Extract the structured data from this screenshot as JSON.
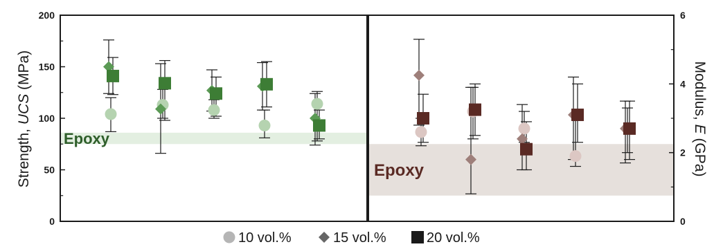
{
  "chart_data": [
    {
      "type": "scatter",
      "panel": "left",
      "ylabel_prefix": "Strength, ",
      "ylabel_italic": "UCS",
      "ylabel_suffix": " (MPa)",
      "ylim": [
        0,
        200
      ],
      "yticks": [
        "0",
        "50",
        "100",
        "150",
        "200"
      ],
      "ytick_values": [
        0,
        50,
        100,
        150,
        200
      ],
      "grid": false,
      "band": {
        "label": "Epoxy",
        "range": [
          75,
          86
        ],
        "color": "#e3efe1",
        "label_color": "#2e5e2a"
      },
      "series": [
        {
          "name": "10 vol.%",
          "marker": "circle",
          "color": "#b5d3b0",
          "values": [
            104,
            113,
            108,
            93,
            114
          ],
          "err_low": [
            87,
            100,
            100,
            81,
            78
          ],
          "err_high": [
            120,
            128,
            118,
            108,
            126
          ]
        },
        {
          "name": "15 vol.%",
          "marker": "diamond",
          "color": "#5b9a55",
          "values": [
            150,
            109,
            127,
            131,
            100
          ],
          "err_low": [
            124,
            66,
            107,
            108,
            74
          ],
          "err_high": [
            176,
            153,
            147,
            154,
            124
          ]
        },
        {
          "name": "20 vol.%",
          "marker": "square",
          "color": "#3d7d35",
          "values": [
            141,
            134,
            124,
            133,
            93
          ],
          "err_low": [
            123,
            98,
            102,
            111,
            80
          ],
          "err_high": [
            159,
            156,
            140,
            155,
            108
          ]
        }
      ]
    },
    {
      "type": "scatter",
      "panel": "right",
      "ylabel_prefix": "Modulus, ",
      "ylabel_italic": "E",
      "ylabel_suffix": " (GPa)",
      "ylim": [
        0,
        6
      ],
      "yticks": [
        "0",
        "2",
        "4",
        "6"
      ],
      "ytick_values": [
        0,
        2,
        4,
        6
      ],
      "grid": false,
      "band": {
        "label": "Epoxy",
        "range": [
          0.75,
          2.25
        ],
        "color": "#e6e0dc",
        "label_color": "#5a2a24"
      },
      "series": [
        {
          "name": "10 vol.%",
          "marker": "circle",
          "color": "#dcc7c3",
          "values": [
            2.6,
            3.2,
            2.7,
            1.9,
            2.7
          ],
          "err_low": [
            2.2,
            2.4,
            2.3,
            1.6,
            2.0
          ],
          "err_high": [
            3.0,
            3.9,
            3.2,
            3.1,
            3.3
          ]
        },
        {
          "name": "15 vol.%",
          "marker": "diamond",
          "color": "#9e7f7a",
          "values": [
            4.25,
            1.8,
            2.4,
            3.1,
            2.7
          ],
          "err_low": [
            2.8,
            0.8,
            1.5,
            1.8,
            1.7
          ],
          "err_high": [
            5.3,
            3.9,
            3.4,
            4.2,
            3.5
          ]
        },
        {
          "name": "20 vol.%",
          "marker": "square",
          "color": "#5a2a24",
          "values": [
            3.0,
            3.25,
            2.1,
            3.1,
            2.7
          ],
          "err_low": [
            2.3,
            2.5,
            1.5,
            2.3,
            1.8
          ],
          "err_high": [
            3.7,
            4.0,
            2.9,
            4.0,
            3.5
          ]
        }
      ]
    }
  ],
  "legend": {
    "items": [
      {
        "label": "10 vol.%",
        "marker": "circle",
        "color": "#b5b5b5"
      },
      {
        "label": "15 vol.%",
        "marker": "diamond",
        "color": "#666666"
      },
      {
        "label": "20 vol.%",
        "marker": "square",
        "color": "#1a1a1a"
      }
    ]
  }
}
